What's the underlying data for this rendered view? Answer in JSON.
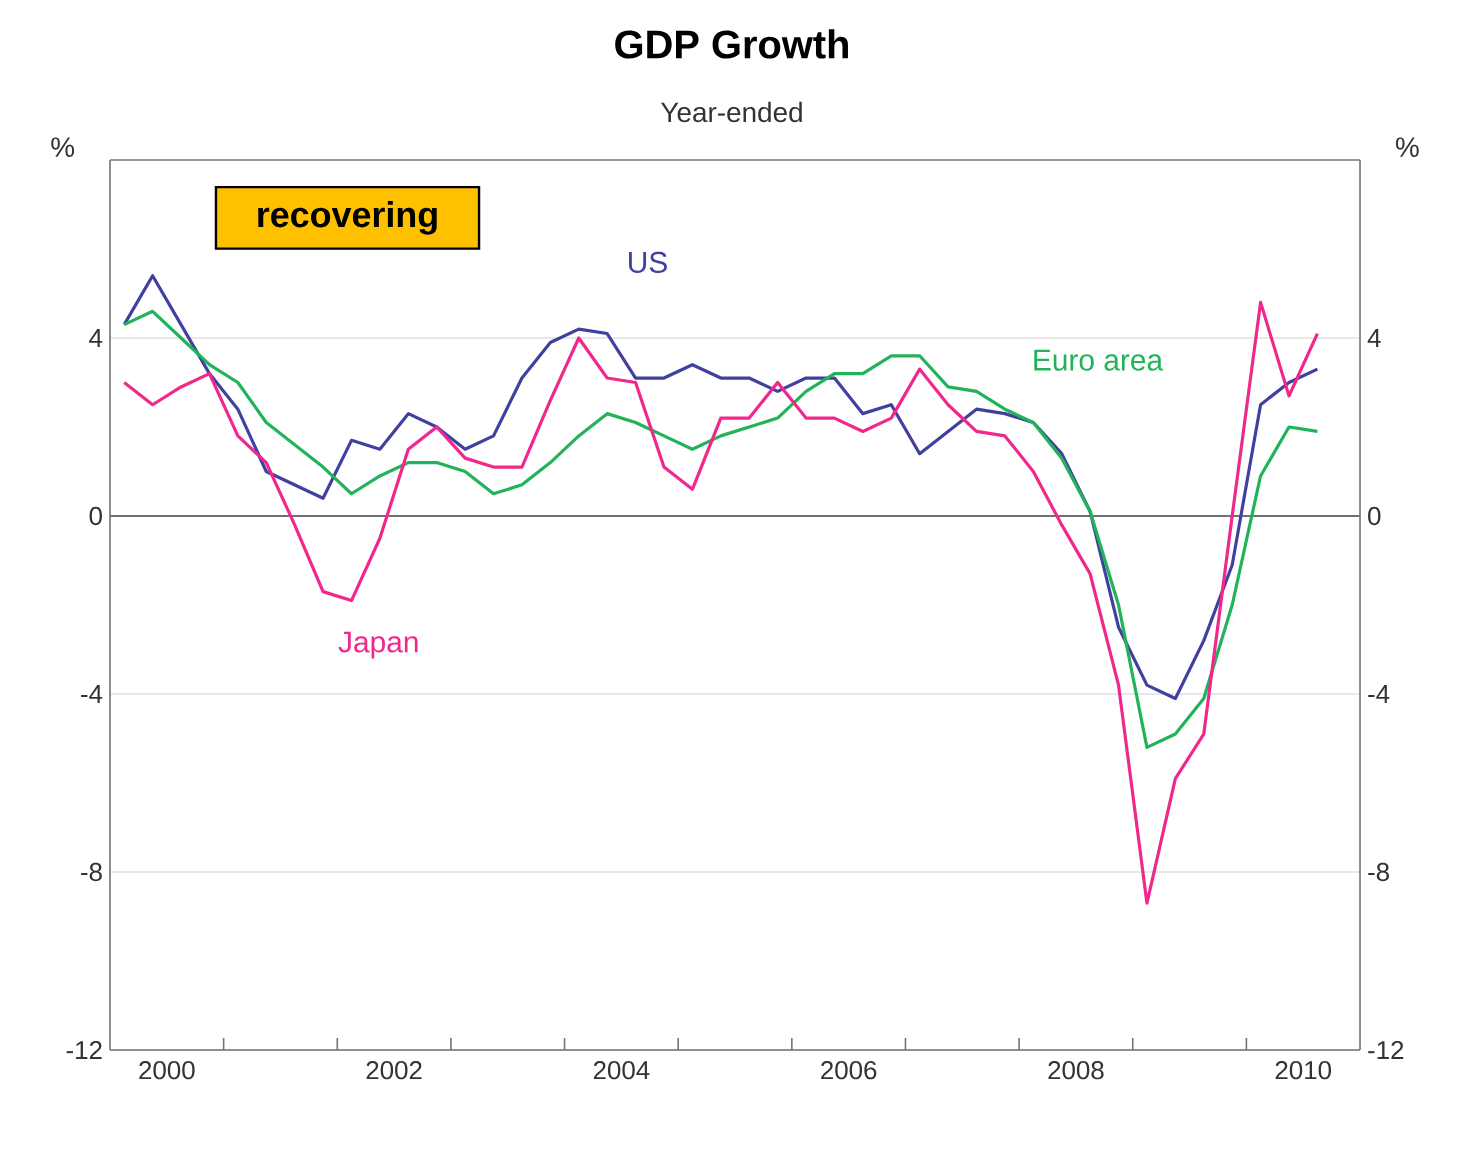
{
  "chart_data": {
    "type": "line",
    "title": "GDP Growth",
    "subtitle": "Year-ended",
    "ylabel": "%",
    "y2label": "%",
    "annotations": [
      "recovering"
    ],
    "x": [
      2000.125,
      2000.375,
      2000.625,
      2000.875,
      2001.125,
      2001.375,
      2001.625,
      2001.875,
      2002.125,
      2002.375,
      2002.625,
      2002.875,
      2003.125,
      2003.375,
      2003.625,
      2003.875,
      2004.125,
      2004.375,
      2004.625,
      2004.875,
      2005.125,
      2005.375,
      2005.625,
      2005.875,
      2006.125,
      2006.375,
      2006.625,
      2006.875,
      2007.125,
      2007.375,
      2007.625,
      2007.875,
      2008.125,
      2008.375,
      2008.625,
      2008.875,
      2009.125,
      2009.375,
      2009.625,
      2009.875,
      2010.125,
      2010.375,
      2010.625
    ],
    "series": [
      {
        "name": "US",
        "color": "#4040a0",
        "values": [
          4.3,
          5.4,
          4.3,
          3.2,
          2.4,
          1.0,
          0.7,
          0.4,
          1.7,
          1.5,
          2.3,
          2.0,
          1.5,
          1.8,
          3.1,
          3.9,
          4.2,
          4.1,
          3.1,
          3.1,
          3.4,
          3.1,
          3.1,
          2.8,
          3.1,
          3.1,
          2.3,
          2.5,
          1.4,
          1.9,
          2.4,
          2.3,
          2.1,
          1.4,
          0.1,
          -2.5,
          -3.8,
          -4.1,
          -2.8,
          -1.1,
          2.5,
          3.0,
          3.3
        ]
      },
      {
        "name": "Euro area",
        "color": "#22b35a",
        "values": [
          4.3,
          4.6,
          4.0,
          3.4,
          3.0,
          2.1,
          1.6,
          1.1,
          0.5,
          0.9,
          1.2,
          1.2,
          1.0,
          0.5,
          0.7,
          1.2,
          1.8,
          2.3,
          2.1,
          1.8,
          1.5,
          1.8,
          2.0,
          2.2,
          2.8,
          3.2,
          3.2,
          3.6,
          3.6,
          2.9,
          2.8,
          2.4,
          2.1,
          1.3,
          0.1,
          -2.0,
          -5.2,
          -4.9,
          -4.1,
          -2.0,
          0.9,
          2.0,
          1.9
        ]
      },
      {
        "name": "Japan",
        "color": "#f0288c",
        "values": [
          3.0,
          2.5,
          2.9,
          3.2,
          1.8,
          1.2,
          -0.2,
          -1.7,
          -1.9,
          -0.5,
          1.5,
          2.0,
          1.3,
          1.1,
          1.1,
          2.6,
          4.0,
          3.1,
          3.0,
          1.1,
          0.6,
          2.2,
          2.2,
          3.0,
          2.2,
          2.2,
          1.9,
          2.2,
          3.3,
          2.5,
          1.9,
          1.8,
          1.0,
          -0.2,
          -1.3,
          -3.8,
          -8.7,
          -5.9,
          -4.9,
          0.0,
          4.8,
          2.7,
          4.1
        ]
      }
    ],
    "xlim": [
      2000,
      2011
    ],
    "xticks": [
      {
        "value": 2000.5,
        "label": "2000"
      },
      {
        "value": 2002.5,
        "label": "2002"
      },
      {
        "value": 2004.5,
        "label": "2004"
      },
      {
        "value": 2006.5,
        "label": "2006"
      },
      {
        "value": 2008.5,
        "label": "2008"
      },
      {
        "value": 2010.5,
        "label": "2010"
      },
      {
        "value": 2001,
        "label": null
      },
      {
        "value": 2002,
        "label": null
      },
      {
        "value": 2003,
        "label": null
      },
      {
        "value": 2004,
        "label": null
      },
      {
        "value": 2005,
        "label": null
      },
      {
        "value": 2006,
        "label": null
      },
      {
        "value": 2007,
        "label": null
      },
      {
        "value": 2008,
        "label": null
      },
      {
        "value": 2009,
        "label": null
      },
      {
        "value": 2010,
        "label": null
      }
    ],
    "ylim": [
      -12,
      8
    ],
    "yticks": [
      -12,
      -8,
      -4,
      0,
      4
    ],
    "y2lim": [
      -12,
      8
    ],
    "y2ticks": [
      -12,
      -8,
      -4,
      0,
      4
    ],
    "ref_lines": [
      {
        "axis": "y",
        "value": 0,
        "color": "#707070"
      }
    ],
    "grid": "y",
    "legend": false,
    "marker": "none",
    "line_style": "solid"
  }
}
